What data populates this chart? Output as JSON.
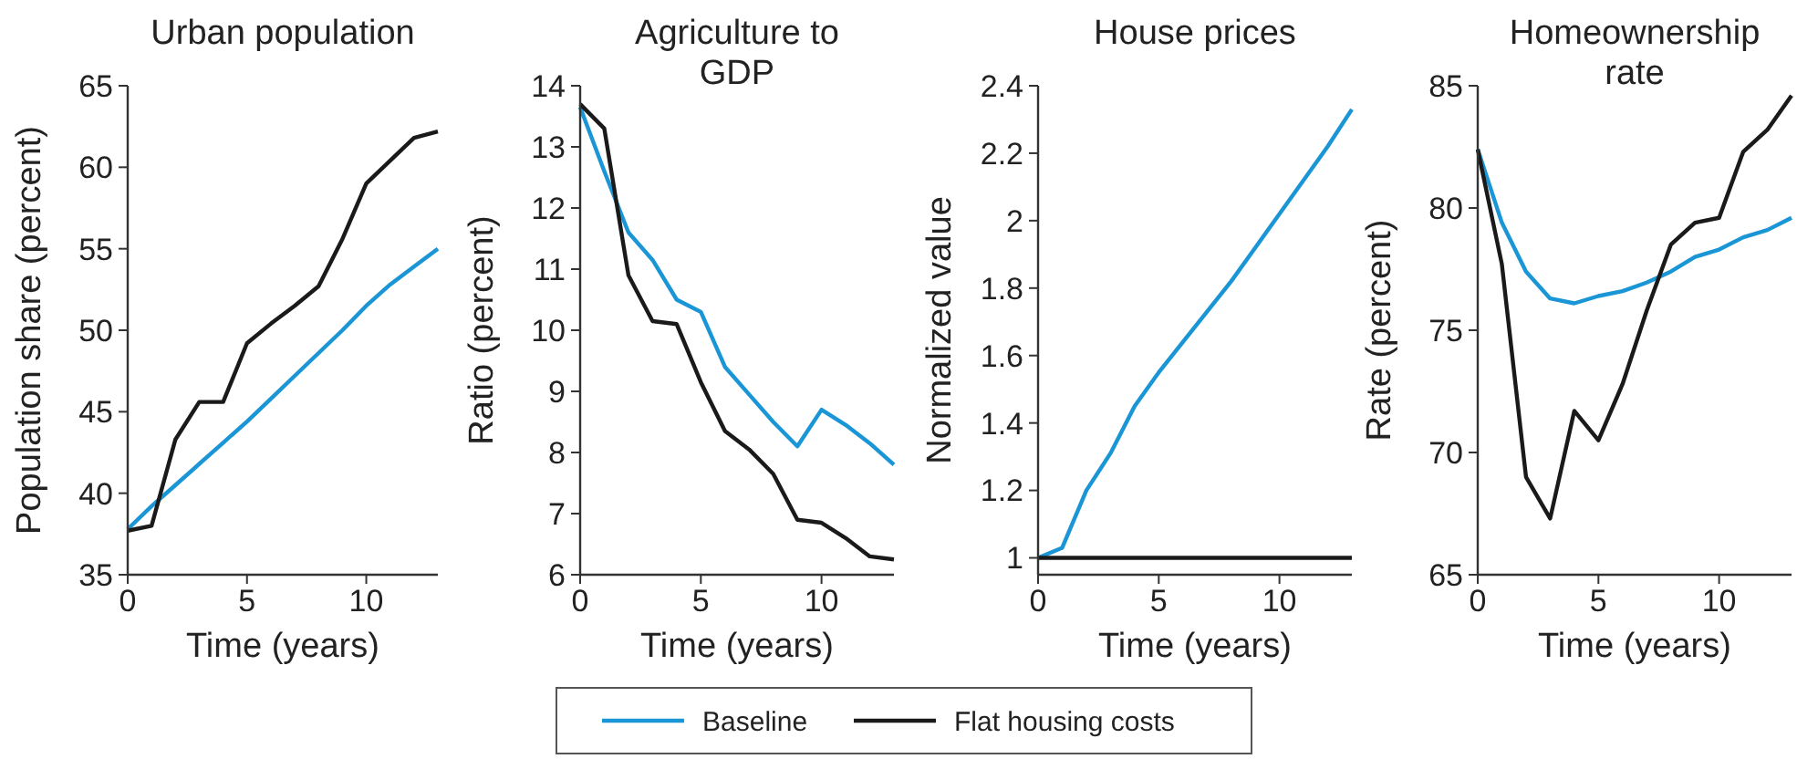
{
  "chart_data": [
    {
      "type": "line",
      "title": "Urban population",
      "xlabel": "Time (years)",
      "ylabel": "Population share (percent)",
      "x": [
        0,
        1,
        2,
        3,
        4,
        5,
        6,
        7,
        8,
        9,
        10,
        11,
        12,
        13
      ],
      "xlim": [
        0,
        13
      ],
      "xticks": [
        0,
        5,
        10
      ],
      "ylim": [
        35,
        65
      ],
      "yticks": [
        35,
        40,
        45,
        50,
        55,
        60,
        65
      ],
      "legend": "bottom",
      "grid": false,
      "series": [
        {
          "name": "Baseline",
          "color": "#1a96d6",
          "values": [
            37.8,
            39.2,
            40.5,
            41.8,
            43.1,
            44.4,
            45.8,
            47.2,
            48.6,
            50.0,
            51.5,
            52.8,
            53.9,
            55.0
          ]
        },
        {
          "name": "Flat housing costs",
          "color": "#1a1a1a",
          "values": [
            37.7,
            38.0,
            43.3,
            45.6,
            45.6,
            49.2,
            50.4,
            51.5,
            52.7,
            55.6,
            59.0,
            60.4,
            61.8,
            62.2
          ]
        }
      ]
    },
    {
      "type": "line",
      "title": "Agriculture to GDP",
      "xlabel": "Time (years)",
      "ylabel": "Ratio (percent)",
      "x": [
        0,
        1,
        2,
        3,
        4,
        5,
        6,
        7,
        8,
        9,
        10,
        11,
        12,
        13
      ],
      "xlim": [
        0,
        13
      ],
      "xticks": [
        0,
        5,
        10
      ],
      "ylim": [
        6,
        14
      ],
      "yticks": [
        6,
        7,
        8,
        9,
        10,
        11,
        12,
        13,
        14
      ],
      "grid": false,
      "series": [
        {
          "color": "#1a96d6",
          "values": [
            13.65,
            12.6,
            11.6,
            11.15,
            10.5,
            10.3,
            9.4,
            8.95,
            8.5,
            8.1,
            8.7,
            8.45,
            8.15,
            7.8
          ]
        },
        {
          "color": "#1a1a1a",
          "values": [
            13.7,
            13.3,
            10.9,
            10.15,
            10.1,
            9.15,
            8.35,
            8.05,
            7.65,
            6.9,
            6.85,
            6.6,
            6.3,
            6.25
          ]
        }
      ]
    },
    {
      "type": "line",
      "title": "House prices",
      "xlabel": "Time (years)",
      "ylabel": "Normalized value",
      "x": [
        0,
        1,
        2,
        3,
        4,
        5,
        6,
        7,
        8,
        9,
        10,
        11,
        12,
        13
      ],
      "xlim": [
        0,
        13
      ],
      "xticks": [
        0,
        5,
        10
      ],
      "ylim": [
        0.95,
        2.4
      ],
      "yticks": [
        1,
        1.2,
        1.4,
        1.6,
        1.8,
        2,
        2.2,
        2.4
      ],
      "grid": false,
      "series": [
        {
          "color": "#1a96d6",
          "values": [
            1.0,
            1.03,
            1.2,
            1.31,
            1.45,
            1.55,
            1.64,
            1.73,
            1.82,
            1.92,
            2.02,
            2.12,
            2.22,
            2.33
          ]
        },
        {
          "color": "#1a1a1a",
          "values": [
            1,
            1,
            1,
            1,
            1,
            1,
            1,
            1,
            1,
            1,
            1,
            1,
            1,
            1
          ]
        }
      ]
    },
    {
      "type": "line",
      "title": "Homeownership rate",
      "xlabel": "Time (years)",
      "ylabel": "Rate (percent)",
      "x": [
        0,
        1,
        2,
        3,
        4,
        5,
        6,
        7,
        8,
        9,
        10,
        11,
        12,
        13
      ],
      "xlim": [
        0,
        13
      ],
      "xticks": [
        0,
        5,
        10
      ],
      "ylim": [
        65,
        85
      ],
      "yticks": [
        65,
        70,
        75,
        80,
        85
      ],
      "grid": false,
      "series": [
        {
          "color": "#1a96d6",
          "values": [
            82.4,
            79.4,
            77.4,
            76.3,
            76.1,
            76.4,
            76.6,
            76.95,
            77.4,
            78.0,
            78.3,
            78.8,
            79.1,
            79.6
          ]
        },
        {
          "color": "#1a1a1a",
          "values": [
            82.4,
            77.7,
            69.0,
            67.3,
            71.7,
            70.5,
            72.8,
            75.8,
            78.5,
            79.4,
            79.6,
            82.3,
            83.2,
            84.6
          ]
        }
      ]
    }
  ]
}
